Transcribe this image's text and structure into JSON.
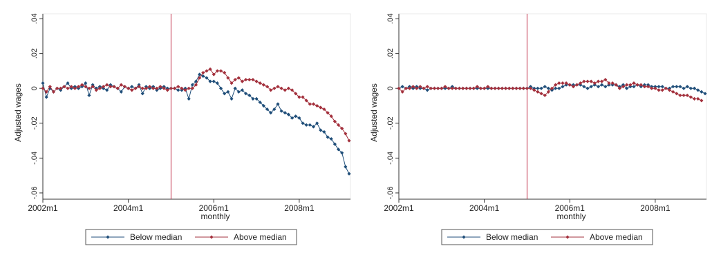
{
  "chart_data": [
    {
      "type": "line",
      "ylabel": "Adjusted wages",
      "xlabel": "monthly",
      "x_start": "2002m1",
      "x_ticks": [
        "2002m1",
        "2004m1",
        "2006m1",
        "2008m1"
      ],
      "y_ticks": [
        ".04",
        ".02",
        "0",
        "-.02",
        "-.04",
        "-.06"
      ],
      "ylim": [
        -0.062,
        0.042
      ],
      "vline_at": "2005m1",
      "vline_color": "#c0304a",
      "grid": false,
      "legend_position": "bottom",
      "series": [
        {
          "name": "Below median",
          "color": "#1f4e79",
          "values": [
            0.003,
            -0.005,
            0.0,
            -0.002,
            0.0,
            -0.001,
            0.001,
            0.003,
            0.0,
            0.001,
            0.0,
            0.001,
            0.003,
            -0.004,
            0.002,
            0.0,
            0.001,
            0.0,
            -0.001,
            0.002,
            0.001,
            0.0,
            -0.002,
            0.001,
            0.0,
            0.001,
            0.0,
            0.002,
            -0.003,
            0.001,
            0.0,
            0.001,
            -0.001,
            0.0,
            0.001,
            0.0,
            0.0,
            0.0,
            -0.001,
            -0.001,
            0.0,
            -0.006,
            0.002,
            0.004,
            0.008,
            0.007,
            0.006,
            0.004,
            0.004,
            0.003,
            0.0,
            -0.003,
            -0.002,
            -0.006,
            0.0,
            -0.002,
            -0.001,
            -0.003,
            -0.004,
            -0.006,
            -0.006,
            -0.008,
            -0.01,
            -0.012,
            -0.014,
            -0.012,
            -0.009,
            -0.013,
            -0.014,
            -0.015,
            -0.017,
            -0.016,
            -0.017,
            -0.02,
            -0.021,
            -0.021,
            -0.022,
            -0.02,
            -0.024,
            -0.025,
            -0.028,
            -0.029,
            -0.032,
            -0.035,
            -0.037,
            -0.045,
            -0.049
          ]
        },
        {
          "name": "Above median",
          "color": "#a3303c",
          "values": [
            0.0,
            -0.002,
            0.001,
            -0.002,
            0.0,
            0.0,
            0.001,
            0.0,
            0.001,
            0.0,
            0.001,
            0.002,
            0.001,
            0.0,
            0.001,
            -0.001,
            0.0,
            0.001,
            0.002,
            0.001,
            0.001,
            0.0,
            0.002,
            0.001,
            0.0,
            -0.001,
            0.0,
            0.001,
            0.0,
            0.0,
            0.001,
            0.0,
            0.0,
            0.001,
            0.0,
            -0.001,
            0.0,
            0.0,
            0.001,
            0.0,
            -0.001,
            0.0,
            0.0,
            0.002,
            0.006,
            0.009,
            0.01,
            0.011,
            0.008,
            0.01,
            0.01,
            0.009,
            0.006,
            0.003,
            0.005,
            0.006,
            0.004,
            0.005,
            0.005,
            0.005,
            0.004,
            0.003,
            0.002,
            0.001,
            -0.001,
            0.0,
            0.001,
            0.0,
            -0.001,
            0.0,
            -0.001,
            -0.003,
            -0.005,
            -0.005,
            -0.007,
            -0.009,
            -0.009,
            -0.01,
            -0.011,
            -0.012,
            -0.014,
            -0.016,
            -0.019,
            -0.021,
            -0.023,
            -0.026,
            -0.03
          ]
        }
      ]
    },
    {
      "type": "line",
      "ylabel": "Adjusted wages",
      "xlabel": "monthly",
      "x_start": "2002m1",
      "x_ticks": [
        "2002m1",
        "2004m1",
        "2006m1",
        "2008m1"
      ],
      "y_ticks": [
        ".04",
        ".02",
        "0",
        "-.02",
        "-.04",
        "-.06"
      ],
      "ylim": [
        -0.062,
        0.042
      ],
      "vline_at": "2005m1",
      "vline_color": "#c0304a",
      "grid": false,
      "legend_position": "bottom",
      "series": [
        {
          "name": "Below median",
          "color": "#1f4e79",
          "values": [
            0.0,
            0.001,
            0.0,
            0.001,
            0.0,
            0.001,
            0.0,
            0.0,
            -0.001,
            0.0,
            0.0,
            0.0,
            0.0,
            0.0,
            0.0,
            0.001,
            0.0,
            0.0,
            0.0,
            0.0,
            0.0,
            0.0,
            0.0,
            0.0,
            0.0,
            0.0,
            0.0,
            0.0,
            0.0,
            0.0,
            0.0,
            0.0,
            0.0,
            0.0,
            0.0,
            0.0,
            0.0,
            0.001,
            0.0,
            0.0,
            0.0,
            0.001,
            0.0,
            -0.001,
            0.0,
            0.0,
            0.001,
            0.002,
            0.002,
            0.002,
            0.002,
            0.002,
            0.001,
            0.0,
            0.001,
            0.002,
            0.001,
            0.002,
            0.001,
            0.002,
            0.002,
            0.002,
            0.001,
            0.002,
            0.0,
            0.001,
            0.001,
            0.002,
            0.001,
            0.002,
            0.002,
            0.001,
            0.001,
            0.001,
            0.001,
            0.0,
            0.0,
            0.001,
            0.001,
            0.001,
            0.0,
            0.001,
            0.0,
            0.0,
            -0.001,
            -0.002,
            -0.003
          ]
        },
        {
          "name": "Above median",
          "color": "#a3303c",
          "values": [
            0.0,
            -0.002,
            0.0,
            0.0,
            0.001,
            0.0,
            0.001,
            0.0,
            0.001,
            0.0,
            0.0,
            0.0,
            0.0,
            0.001,
            0.0,
            0.0,
            0.0,
            0.0,
            0.0,
            0.0,
            0.0,
            0.0,
            0.001,
            0.0,
            0.0,
            0.001,
            0.0,
            0.0,
            0.0,
            0.0,
            0.0,
            0.0,
            0.0,
            0.0,
            0.0,
            0.0,
            0.0,
            0.0,
            -0.001,
            -0.002,
            -0.003,
            -0.004,
            -0.002,
            0.0,
            0.002,
            0.003,
            0.003,
            0.003,
            0.002,
            0.001,
            0.002,
            0.003,
            0.004,
            0.004,
            0.004,
            0.003,
            0.004,
            0.004,
            0.005,
            0.003,
            0.003,
            0.002,
            0.0,
            0.001,
            0.002,
            0.002,
            0.003,
            0.002,
            0.002,
            0.001,
            0.001,
            0.0,
            0.0,
            -0.001,
            -0.001,
            0.0,
            -0.001,
            -0.002,
            -0.003,
            -0.004,
            -0.004,
            -0.004,
            -0.005,
            -0.006,
            -0.006,
            -0.007
          ]
        }
      ]
    }
  ]
}
